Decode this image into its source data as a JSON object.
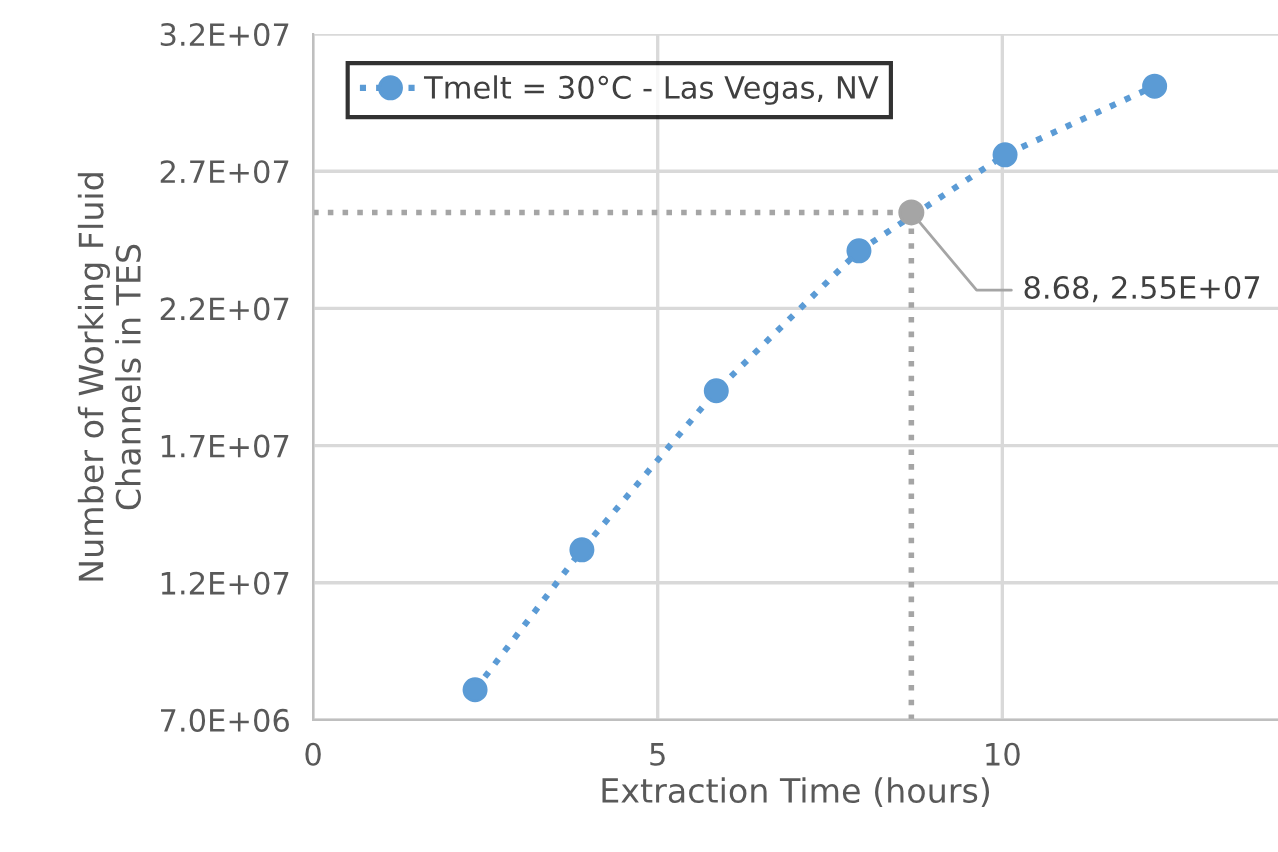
{
  "chart_data": {
    "type": "line",
    "xlabel": "Extraction Time (hours)",
    "ylabel": "Number of Working Fluid\nChannels in TES",
    "series": [
      {
        "name": "Tmelt = 30°C - Las Vegas, NV",
        "color": "#5b9bd5",
        "x": [
          2.35,
          3.9,
          5.85,
          7.92,
          10.04,
          12.21
        ],
        "values": [
          8100000.0,
          13200000.0,
          19000000.0,
          24100000.0,
          27600000.0,
          30100000.0
        ],
        "marker": "circle",
        "line_style": "dotted"
      },
      {
        "type": "scatter",
        "color": "#a5a5a5",
        "x": [
          8.68
        ],
        "values": [
          25500000.0
        ],
        "marker": "circle"
      }
    ],
    "xlim": [
      0,
      14
    ],
    "xticks": [
      0,
      5,
      10
    ],
    "ylim": [
      7000000.0,
      32000000.0
    ],
    "yticks": [
      {
        "value": 7000000.0,
        "label": "7.0E+06"
      },
      {
        "value": 12000000.0,
        "label": "1.2E+07"
      },
      {
        "value": 17000000.0,
        "label": "1.7E+07"
      },
      {
        "value": 22000000.0,
        "label": "2.2E+07"
      },
      {
        "value": 27000000.0,
        "label": "2.7E+07"
      },
      {
        "value": 32000000.0,
        "label": "3.2E+07"
      }
    ],
    "ref_lines": [
      {
        "axis": "x",
        "value": 8.68,
        "color": "#a5a5a5",
        "line_style": "dotted"
      },
      {
        "axis": "y",
        "value": 25500000.0,
        "color": "#a5a5a5",
        "line_style": "dotted"
      }
    ],
    "annotations": [
      {
        "text": "8.68, 2.55E+07",
        "x": 8.68,
        "y": 25500000.0
      }
    ],
    "grid": true,
    "legend": "top left"
  }
}
